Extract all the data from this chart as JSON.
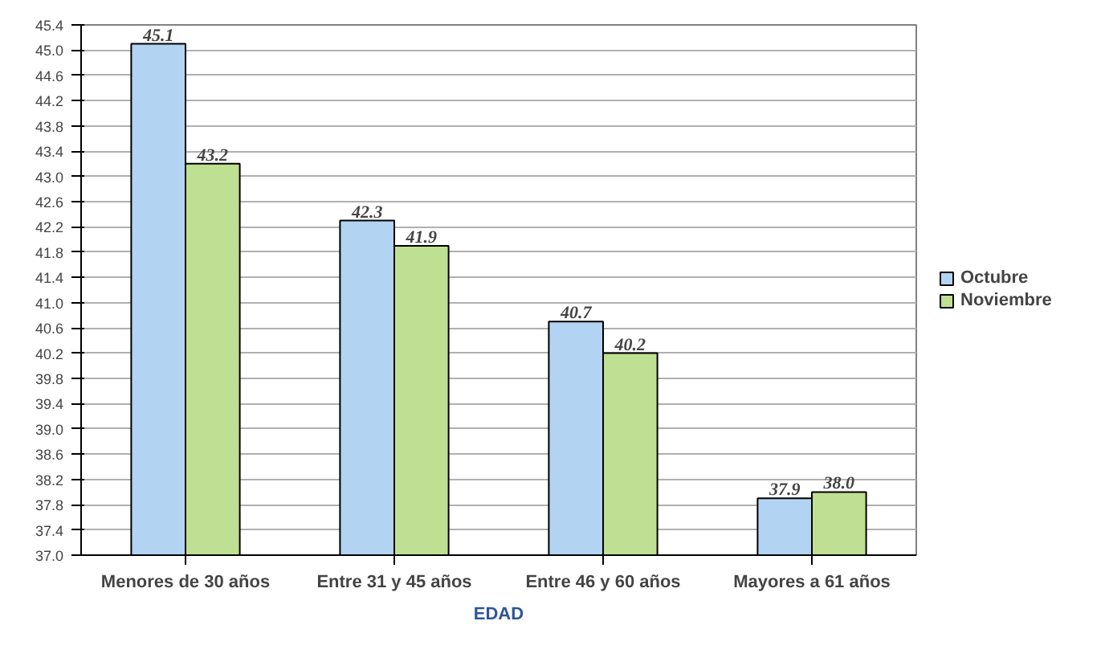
{
  "chart_data": {
    "type": "bar",
    "xlabel": "EDAD",
    "categories": [
      "Menores de 30 años",
      "Entre 31 y 45 años",
      "Entre 46 y 60 años",
      "Mayores a 61 años"
    ],
    "series": [
      {
        "name": "Octubre",
        "color": "#b3d3f2",
        "values": [
          45.1,
          42.3,
          40.7,
          37.9
        ],
        "value_labels": [
          "45.1",
          "42.3",
          "40.7",
          "37.9"
        ]
      },
      {
        "name": "Noviembre",
        "color": "#bfe093",
        "values": [
          43.2,
          41.9,
          40.2,
          38.0
        ],
        "value_labels": [
          "43.2",
          "41.9",
          "40.2",
          "38.0"
        ]
      }
    ],
    "ylim": [
      37.0,
      45.4
    ],
    "yticks": [
      {
        "value": 37.0,
        "label": "37.0"
      },
      {
        "value": 37.4,
        "label": "37.4"
      },
      {
        "value": 37.8,
        "label": "37.8"
      },
      {
        "value": 38.2,
        "label": "38.2"
      },
      {
        "value": 38.6,
        "label": "38.6"
      },
      {
        "value": 39.0,
        "label": "39.0"
      },
      {
        "value": 39.4,
        "label": "39.4"
      },
      {
        "value": 39.8,
        "label": "39.8"
      },
      {
        "value": 40.2,
        "label": "40.2"
      },
      {
        "value": 40.6,
        "label": "40.6"
      },
      {
        "value": 41.0,
        "label": "41.0"
      },
      {
        "value": 41.4,
        "label": "41.4"
      },
      {
        "value": 41.8,
        "label": "41.8"
      },
      {
        "value": 42.2,
        "label": "42.2"
      },
      {
        "value": 42.6,
        "label": "42.6"
      },
      {
        "value": 43.0,
        "label": "43.0"
      },
      {
        "value": 43.4,
        "label": "43.4"
      },
      {
        "value": 43.8,
        "label": "43.8"
      },
      {
        "value": 44.2,
        "label": "44.2"
      },
      {
        "value": 44.6,
        "label": "44.6"
      },
      {
        "value": 45.0,
        "label": "45.0"
      },
      {
        "value": 45.4,
        "label": "45.4"
      }
    ],
    "grid": "y",
    "legend": "right"
  }
}
